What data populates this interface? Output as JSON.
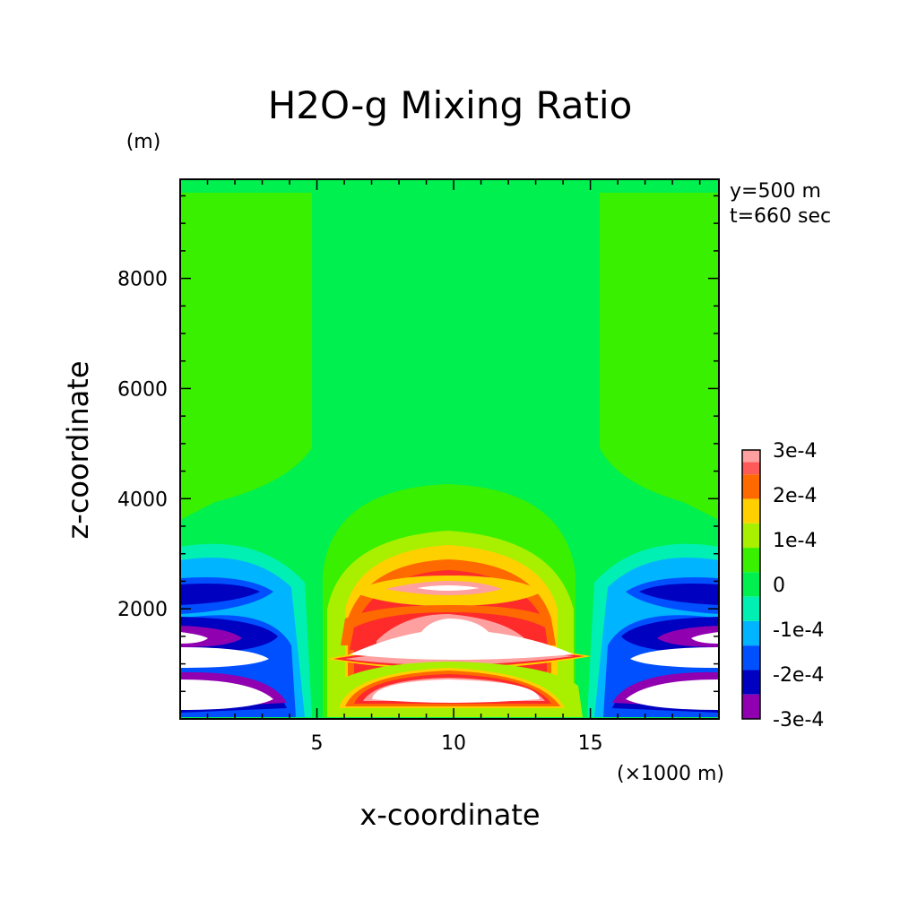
{
  "chart_data": {
    "type": "heatmap",
    "title": "H2O-g Mixing Ratio",
    "xlabel": "x-coordinate",
    "ylabel": "z-coordinate",
    "x_unit": "(×1000 m)",
    "y_unit": "(m)",
    "annotations": [
      "y=500 m",
      "t=660 sec"
    ],
    "xlim": [
      0,
      19.7
    ],
    "ylim": [
      0,
      9800
    ],
    "x_ticks": [
      5,
      10,
      15
    ],
    "x_tick_labels": [
      "5",
      "10",
      "15"
    ],
    "y_ticks": [
      2000,
      4000,
      6000,
      8000
    ],
    "y_tick_labels": [
      "2000",
      "4000",
      "6000",
      "8000"
    ],
    "colorbar": {
      "levels": [
        "3e-4",
        "2e-4",
        "1e-4",
        "0",
        "-1e-4",
        "-2e-4",
        "-3e-4"
      ],
      "colors": [
        "#ff5a5a",
        "#ff6a00",
        "#ffd000",
        "#a8f000",
        "#38f000",
        "#00f050",
        "#00f0b4",
        "#00b4ff",
        "#0050ff",
        "#0000c0",
        "#9000b0"
      ]
    },
    "regions": [
      {
        "value": "0",
        "x": [
          0,
          19.7
        ],
        "z": [
          0,
          9800
        ]
      },
      {
        "value": "-3e-4",
        "x": [
          0,
          5
        ],
        "z": [
          0,
          2700
        ]
      },
      {
        "value": "-3e-4",
        "x": [
          15,
          19.7
        ],
        "z": [
          0,
          2700
        ]
      },
      {
        "value": "3e-4",
        "x": [
          5.5,
          14.5
        ],
        "z": [
          200,
          2800
        ]
      }
    ]
  }
}
